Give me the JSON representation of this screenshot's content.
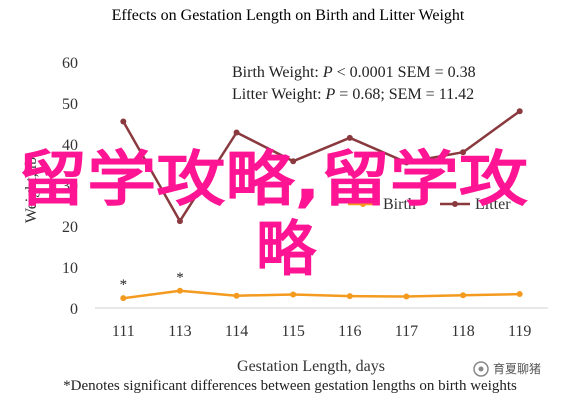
{
  "chart_data": {
    "type": "line",
    "title": "Effects on Gestation Length on Birth and Litter Weight",
    "xlabel": "Gestation Length, days",
    "ylabel": "Weight, lb",
    "categories": [
      "111",
      "113",
      "114",
      "115",
      "116",
      "117",
      "118",
      "119"
    ],
    "ylim": [
      0,
      60
    ],
    "yticks": [
      "0",
      "10",
      "20",
      "30",
      "40",
      "50",
      "60"
    ],
    "grid": false,
    "legend": "center-right",
    "series": [
      {
        "name": "Birth",
        "color": "#f39a1f",
        "values": [
          2.4,
          4.2,
          3.0,
          3.3,
          2.9,
          2.8,
          3.1,
          3.4
        ]
      },
      {
        "name": "Litter",
        "color": "#8a3a3f",
        "values": [
          45.5,
          21.2,
          42.8,
          35.8,
          41.5,
          35.5,
          38.0,
          48.0
        ]
      }
    ],
    "significance_marks": [
      {
        "category": "111",
        "text": "*"
      },
      {
        "category": "113",
        "text": "*"
      }
    ],
    "stats": [
      {
        "label": "Birth Weight: ",
        "p_sym": "P",
        "rest": " < 0.0001 SEM = 0.38"
      },
      {
        "label": "Litter Weight: ",
        "p_sym": "P",
        "rest": " = 0.68; SEM = 11.42"
      }
    ],
    "footnote": "*Denotes significant differences between gestation lengths on birth weights"
  },
  "overlay": {
    "line1": "留学攻略,留学攻",
    "line2": "略"
  },
  "watermark": "育夏聊猪"
}
